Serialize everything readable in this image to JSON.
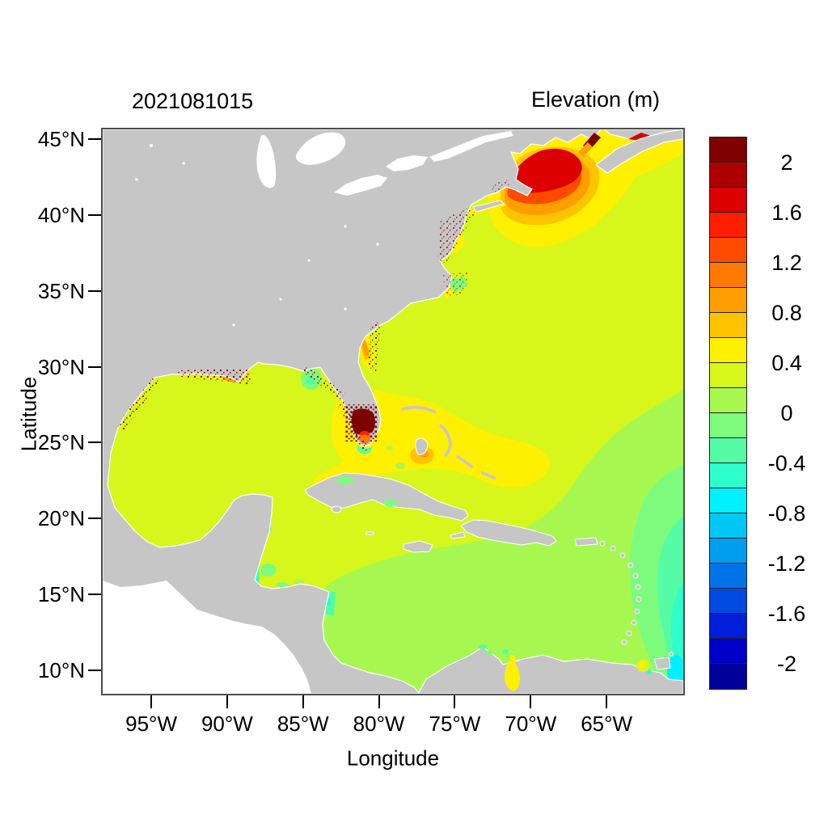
{
  "chart_data": {
    "type": "heatmap",
    "subtype": "filled-contour-geographic-map",
    "title": "2021081015",
    "colorbar_title": "Elevation (m)",
    "xlabel": "Longitude",
    "ylabel": "Latitude",
    "grid": false,
    "legend_position": "right-colorbar",
    "xlim_deg": [
      -98.2,
      -59.9
    ],
    "ylim_deg": [
      8.5,
      45.6
    ],
    "x_ticks": [
      {
        "label": "95°W",
        "deg": -95
      },
      {
        "label": "90°W",
        "deg": -90
      },
      {
        "label": "85°W",
        "deg": -85
      },
      {
        "label": "80°W",
        "deg": -80
      },
      {
        "label": "75°W",
        "deg": -75
      },
      {
        "label": "70°W",
        "deg": -70
      },
      {
        "label": "65°W",
        "deg": -65
      }
    ],
    "y_ticks": [
      {
        "label": "45°N",
        "deg": 45
      },
      {
        "label": "40°N",
        "deg": 40
      },
      {
        "label": "35°N",
        "deg": 35
      },
      {
        "label": "30°N",
        "deg": 30
      },
      {
        "label": "25°N",
        "deg": 25
      },
      {
        "label": "20°N",
        "deg": 20
      },
      {
        "label": "15°N",
        "deg": 15
      },
      {
        "label": "10°N",
        "deg": 10
      }
    ],
    "colorbar": {
      "units": "m",
      "levels": {
        "min": -2.2,
        "max": 2.2,
        "step": 0.2
      },
      "tick_labels": [
        "2",
        "1.6",
        "1.2",
        "0.8",
        "0.4",
        "0",
        "-0.4",
        "-0.8",
        "-1.2",
        "-1.6",
        "-2"
      ],
      "colors_top_to_bottom": [
        "#7F0000",
        "#AD0000",
        "#DC0000",
        "#FF1E00",
        "#FF4B00",
        "#FF7800",
        "#FF9E00",
        "#FFC300",
        "#FFF000",
        "#D7F61C",
        "#A6F851",
        "#7DFB7D",
        "#55FCA5",
        "#2EFDCC",
        "#00F0FF",
        "#00C8F5",
        "#009EEF",
        "#0073E8",
        "#0049E1",
        "#001FDA",
        "#0000C8",
        "#00009B"
      ]
    },
    "features": [
      {
        "region": "Bay of Fundy / Gulf of Maine maximum (~66W 44N)",
        "elevation_m": "1.0 to >2.2, concentric red-orange-yellow bands"
      },
      {
        "region": "Open North Atlantic and Gulf of Mexico",
        "elevation_m": "0.2 to 0.4 (dominant background)"
      },
      {
        "region": "Eastern Caribbean and tropical Atlantic south of ~25N east of ~70W",
        "elevation_m": "0 to 0.2"
      },
      {
        "region": "Atlantic east of Lesser Antilles toward SE corner",
        "elevation_m": "-0.6 to 0"
      },
      {
        "region": "Trinidad / Orinoco corner (~61W 10N)",
        "elevation_m": "-0.8 to -0.6 cyan patch"
      },
      {
        "region": "Florida Bay, Keys and Bahama banks",
        "elevation_m": "0.4 to 0.6 with 0.8-1.0 spots"
      },
      {
        "region": "South Florida / Everglades wet-dry cells",
        "elevation_m": "speckled > 2.2 over land"
      },
      {
        "region": "Georgia - South Carolina shelf band",
        "elevation_m": "0.6 to 1.2"
      },
      {
        "region": "Mississippi delta / Louisiana coast",
        "elevation_m": "0.6 to 1.6 patches with >2.2 speckles"
      },
      {
        "region": "Mississippi Sound and Apalachee Bay",
        "elevation_m": "-0.4 to 0"
      },
      {
        "region": "Delaware Bay spot",
        "elevation_m": "0.8 to 1.0"
      },
      {
        "region": "Nicaragua / Honduras / Belize coasts",
        "elevation_m": "-0.6 to -0.2 strips"
      },
      {
        "region": "Lake Maracaibo (Venezuela)",
        "elevation_m": "0.4 to 0.6"
      },
      {
        "region": "Northumberland Strait / PEI sliver",
        "elevation_m": "1.2 to 1.8"
      }
    ]
  },
  "map_colors": {
    "land": "#C6C6C6",
    "lakes_and_outside_domain": "#FFFFFF",
    "open_ocean": "#D7F61C",
    "frame": "#4D4D4D"
  }
}
